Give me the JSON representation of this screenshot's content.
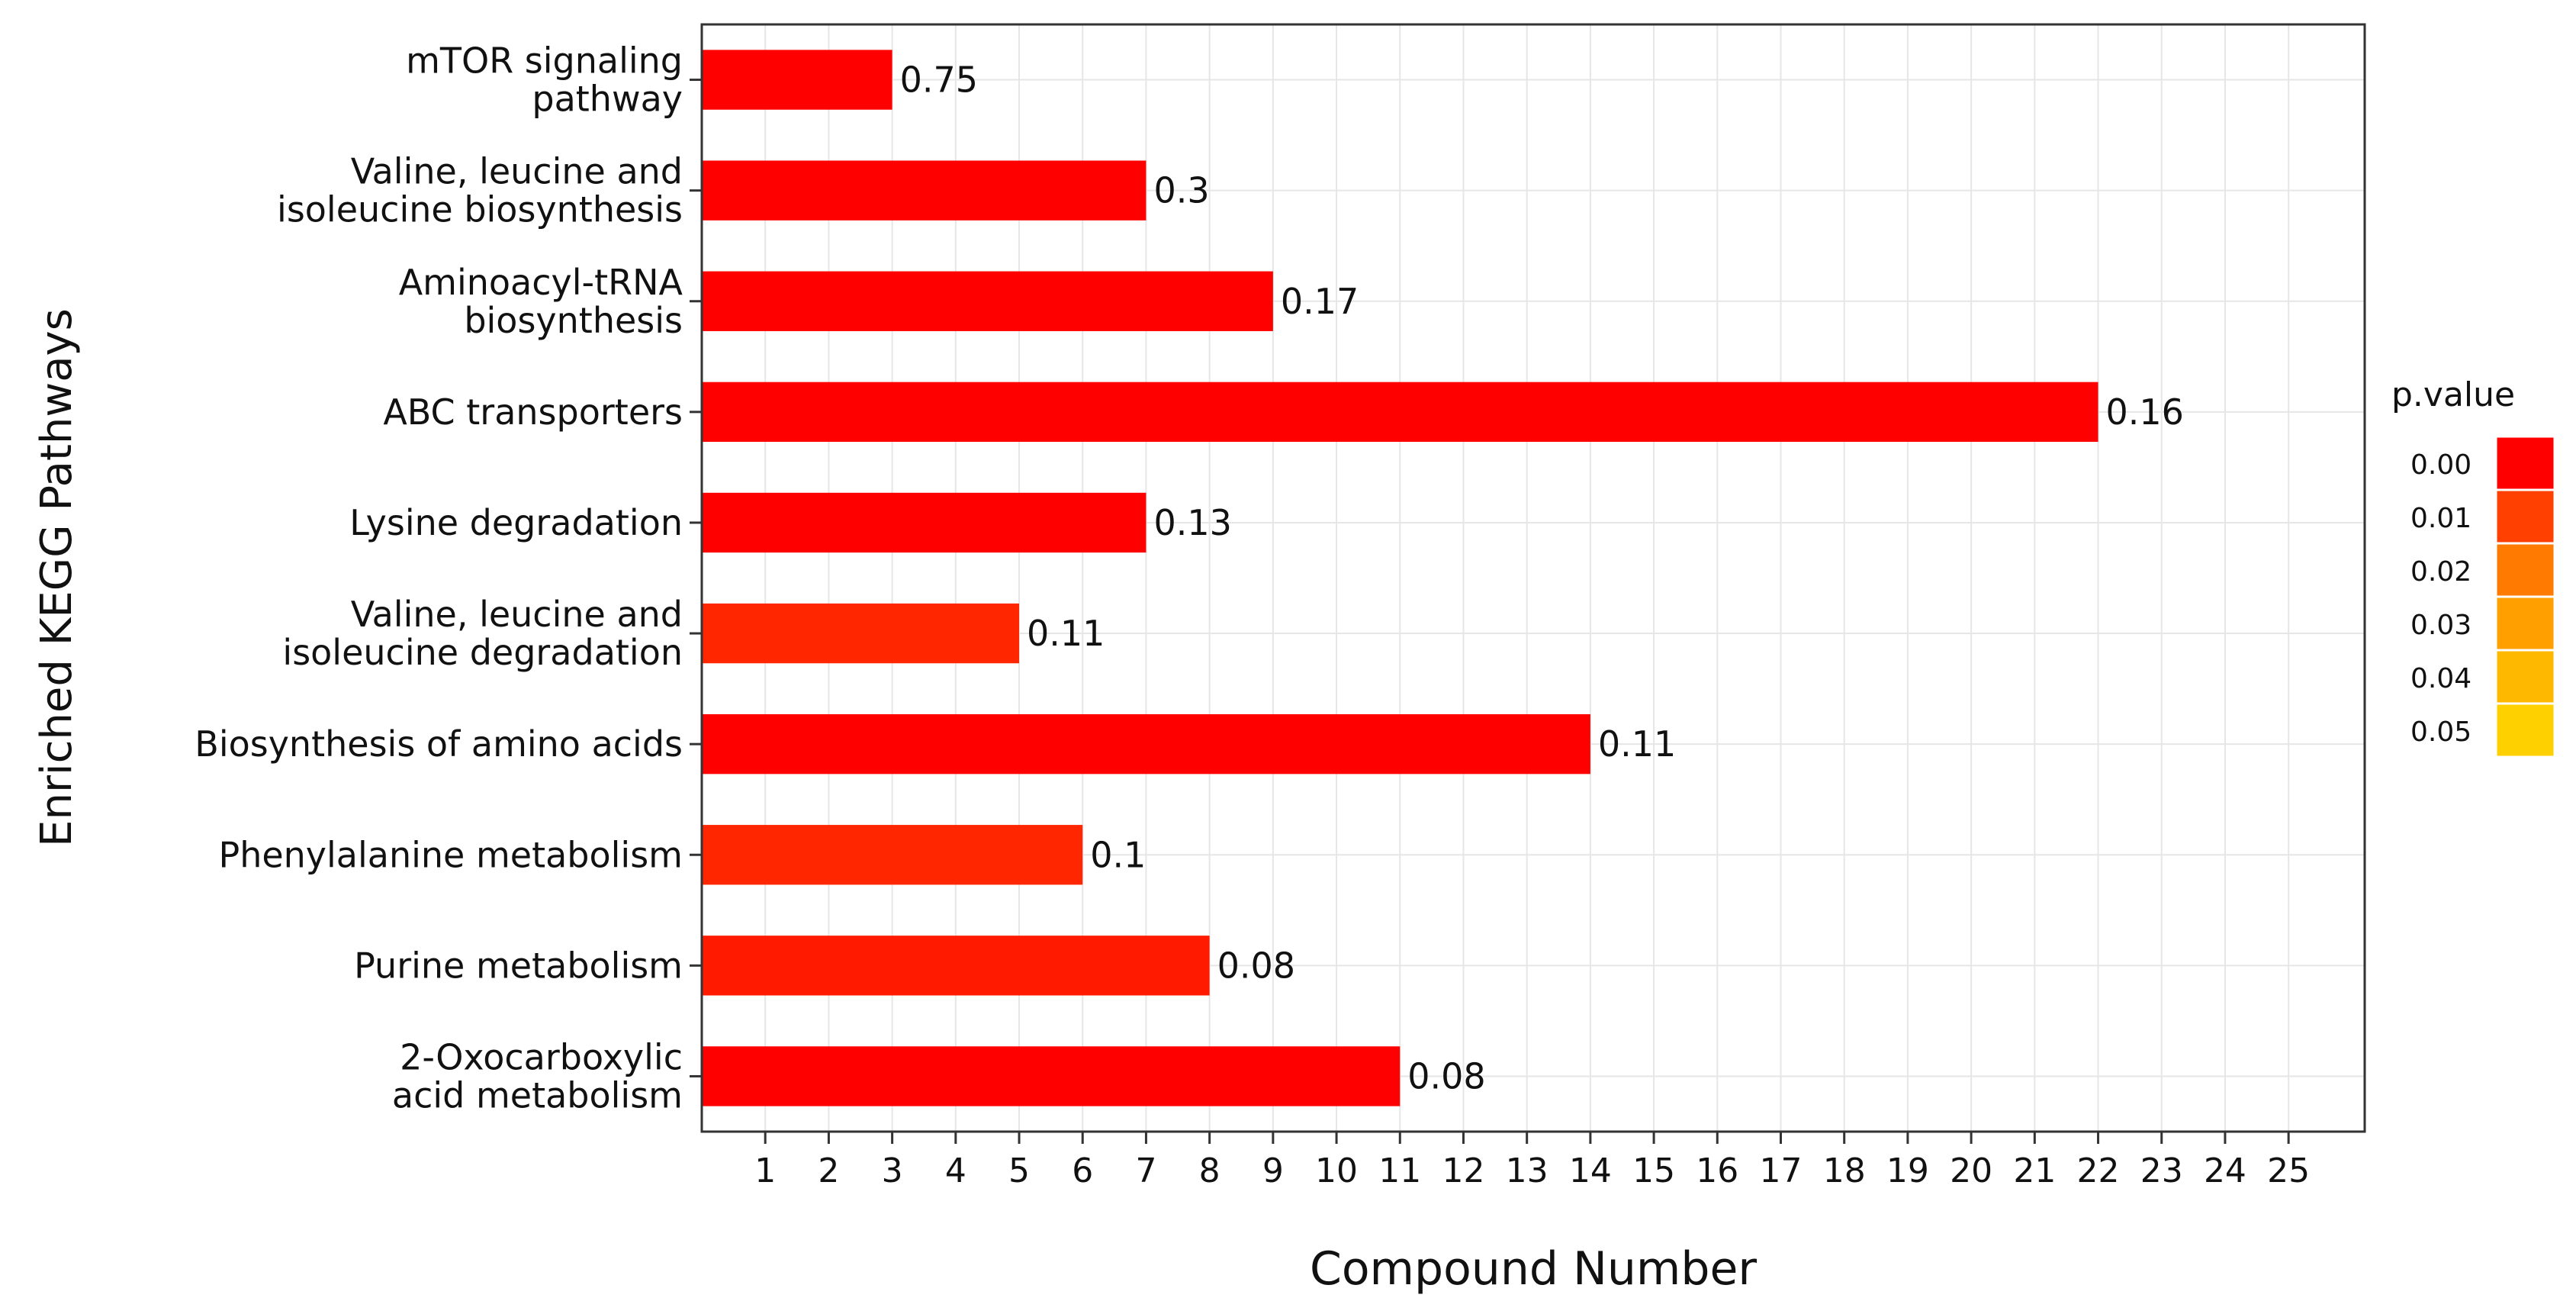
{
  "chart_data": {
    "type": "bar",
    "orientation": "horizontal",
    "title": "",
    "xlabel": "Compound Number",
    "ylabel": "Enriched KEGG Pathways",
    "xlim": [
      0,
      26.2
    ],
    "x_ticks": [
      1,
      2,
      3,
      4,
      5,
      6,
      7,
      8,
      9,
      10,
      11,
      12,
      13,
      14,
      15,
      16,
      17,
      18,
      19,
      20,
      21,
      22,
      23,
      24,
      25
    ],
    "grid": true,
    "categories": [
      [
        "mTOR signaling",
        "pathway"
      ],
      [
        "Valine, leucine and",
        "isoleucine biosynthesis"
      ],
      [
        "Aminoacyl-tRNA",
        "biosynthesis"
      ],
      [
        "ABC transporters"
      ],
      [
        "Lysine degradation"
      ],
      [
        "Valine, leucine and",
        "isoleucine degradation"
      ],
      [
        "Biosynthesis of amino acids"
      ],
      [
        "Phenylalanine metabolism"
      ],
      [
        "Purine metabolism"
      ],
      [
        "2-Oxocarboxylic",
        "acid metabolism"
      ]
    ],
    "values": [
      3,
      7,
      9,
      22,
      7,
      5,
      14,
      6,
      8,
      11
    ],
    "bar_labels": [
      "0.75",
      "0.3",
      "0.17",
      "0.16",
      "0.13",
      "0.11",
      "0.11",
      "0.1",
      "0.08",
      "0.08"
    ],
    "p_values": [
      0.0,
      0.0,
      0.0,
      0.0,
      0.0,
      0.006,
      0.0,
      0.006,
      0.004,
      0.0
    ],
    "legend": {
      "title": "p.value",
      "position": "right",
      "labels": [
        "0.00",
        "0.01",
        "0.02",
        "0.03",
        "0.04",
        "0.05"
      ],
      "colors": [
        "#ff0000",
        "#ff4000",
        "#ff7a00",
        "#ff9f00",
        "#ffb800",
        "#ffd000"
      ]
    }
  }
}
